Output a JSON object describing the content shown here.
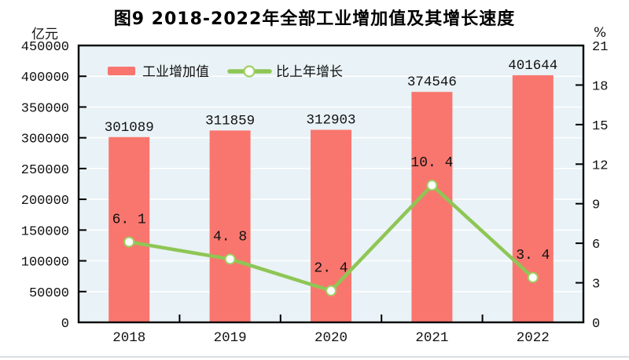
{
  "title": "图9  2018-2022年全部工业增加值及其增长速度",
  "page": {
    "bottom_rule_color": "#dadfe4"
  },
  "chart_data": {
    "type": "bar",
    "combo": "bar+line-dual-axis",
    "title": "图9  2018-2022年全部工业增加值及其增长速度",
    "categories": [
      "2018",
      "2019",
      "2020",
      "2021",
      "2022"
    ],
    "series": [
      {
        "name": "工业增加值",
        "type": "bar",
        "axis": "left",
        "color": "#F9766E",
        "values": [
          301089,
          311859,
          312903,
          374546,
          401644
        ],
        "value_labels": [
          "301089",
          "311859",
          "312903",
          "374546",
          "401644"
        ]
      },
      {
        "name": "比上年增长",
        "type": "line",
        "axis": "right",
        "color": "#8EC655",
        "marker": "open-circle",
        "marker_fill": "#ffffff",
        "marker_ring": "#9FCF62",
        "values": [
          6.1,
          4.8,
          2.4,
          10.4,
          3.4
        ],
        "value_labels": [
          "6. 1",
          "4. 8",
          "2. 4",
          "10. 4",
          "3. 4"
        ]
      }
    ],
    "left_axis": {
      "unit": "亿元",
      "range": [
        0,
        450000
      ],
      "tick_step": 50000,
      "tick_labels": [
        "450000",
        "400000",
        "350000",
        "300000",
        "250000",
        "200000",
        "150000",
        "100000",
        "50000",
        "0"
      ]
    },
    "right_axis": {
      "unit": "%",
      "range": [
        0,
        21
      ],
      "tick_step": 3,
      "tick_labels": [
        "21",
        "18",
        "15",
        "12",
        "9",
        "6",
        "3",
        "0"
      ]
    },
    "grid": "horizontal-white-lines-at-left-ticks",
    "legend_position": "inside-top-left",
    "plot_bg": "#E9F2F6",
    "plot_border_color": "#000000",
    "gridline_color": "#FFFFFF",
    "text_color": "#111111"
  }
}
